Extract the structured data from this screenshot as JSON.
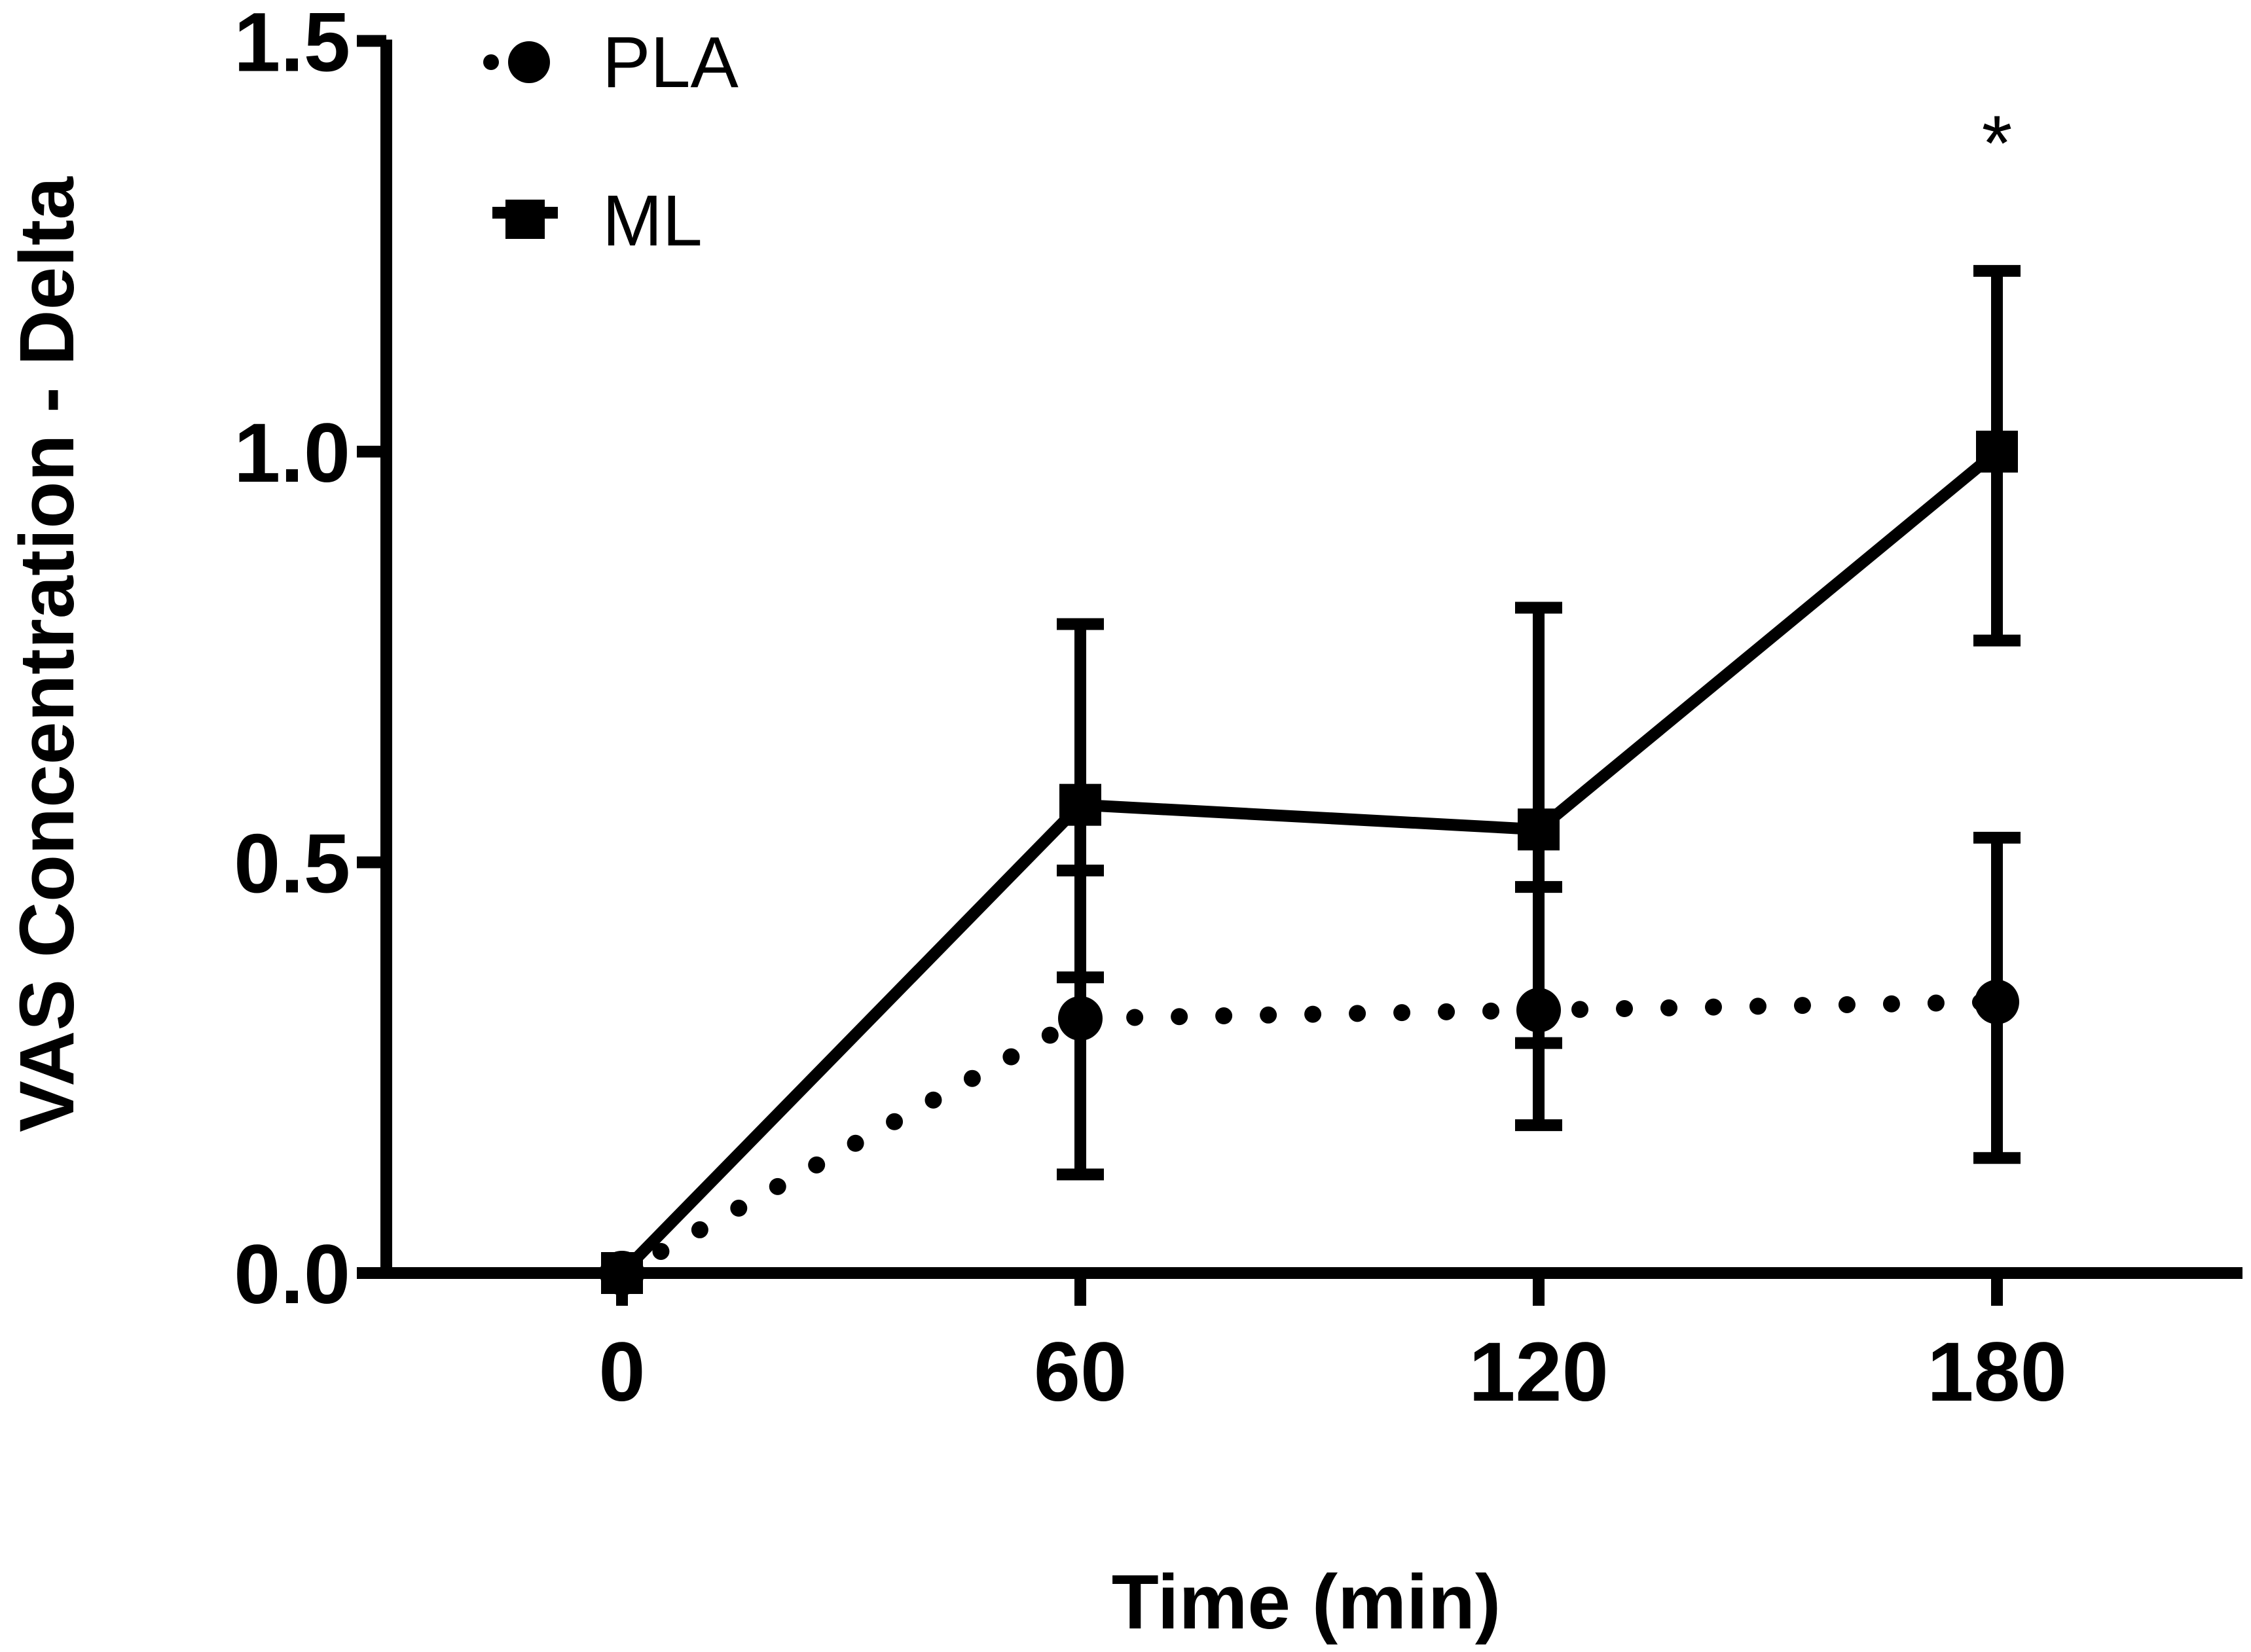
{
  "chart_data": {
    "type": "line",
    "xlabel": "Time (min)",
    "ylabel": "VAS Concentration - Delta",
    "x": [
      0,
      60,
      120,
      180
    ],
    "x_ticks": [
      "0",
      "60",
      "120",
      "180"
    ],
    "y_ticks": [
      "0.0",
      "0.5",
      "1.0",
      "1.5"
    ],
    "ylim": [
      0,
      1.5
    ],
    "series": [
      {
        "name": "PLA",
        "marker": "circle",
        "line_style": "dotted",
        "values": [
          0.0,
          0.31,
          0.32,
          0.33
        ],
        "error": [
          [
            0,
            0
          ],
          [
            0.19,
            0.18
          ],
          [
            0.14,
            0.15
          ],
          [
            0.19,
            0.2
          ]
        ]
      },
      {
        "name": "ML",
        "marker": "square",
        "line_style": "solid",
        "values": [
          0.0,
          0.57,
          0.54,
          1.0
        ],
        "error": [
          [
            0,
            0
          ],
          [
            0.21,
            0.22
          ],
          [
            0.26,
            0.27
          ],
          [
            0.23,
            0.22
          ]
        ]
      }
    ],
    "annotations": [
      {
        "x": 180,
        "text": "*"
      }
    ],
    "legend_position": "top-left",
    "grid": false,
    "color": "#000000"
  }
}
